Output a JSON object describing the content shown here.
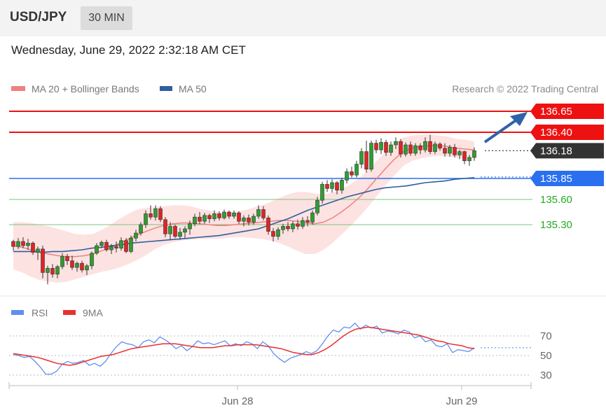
{
  "header": {
    "symbol": "USD/JPY",
    "interval_button": "30 MIN",
    "datetime": "Wednesday, June 29, 2022 2:32:18 AM CET"
  },
  "legend": {
    "ma20_label": "MA 20 + Bollinger Bands",
    "ma50_label": "MA 50",
    "credit": "Research © 2022 Trading Central"
  },
  "price_levels": {
    "target_2": "136.65",
    "target_1": "136.40",
    "last": "136.18",
    "pivot": "135.85",
    "support_1": "135.60",
    "support_2": "135.30"
  },
  "rsi_legend": {
    "rsi_label": "RSI",
    "ma_label": "9MA"
  },
  "rsi_axis": [
    "70",
    "50",
    "30"
  ],
  "x_axis": [
    "Jun 28",
    "Jun 29"
  ],
  "colors": {
    "resistance": "#ee1111",
    "pivot": "#2a6ff0",
    "support": "#22aa22",
    "last": "#333333",
    "bull_candle": "#2e9e2e",
    "bear_candle": "#e02424",
    "ma20": "#f08080",
    "ma50": "#2f5f9e",
    "bollinger_fill": "#fde2e2",
    "rsi": "#5f8ff0",
    "rsi_ma": "#e83030",
    "arrow": "#2f62a8"
  },
  "chart_data": {
    "type": "candlestick",
    "symbol": "USD/JPY",
    "interval": "30 MIN",
    "y_range": [
      134.55,
      136.75
    ],
    "levels": {
      "resistance": [
        136.65,
        136.4
      ],
      "last": 136.18,
      "pivot": 135.85,
      "support": [
        135.6,
        135.3
      ]
    },
    "candles": [
      [
        135.1,
        135.12,
        134.99,
        135.04
      ],
      [
        135.04,
        135.14,
        135.01,
        135.1
      ],
      [
        135.1,
        135.15,
        135.02,
        135.05
      ],
      [
        135.05,
        135.13,
        135.0,
        135.08
      ],
      [
        135.08,
        135.1,
        134.94,
        134.97
      ],
      [
        134.97,
        135.04,
        134.88,
        135.01
      ],
      [
        135.01,
        135.05,
        134.66,
        134.73
      ],
      [
        134.73,
        134.81,
        134.59,
        134.78
      ],
      [
        134.78,
        134.83,
        134.67,
        134.71
      ],
      [
        134.71,
        134.82,
        134.66,
        134.8
      ],
      [
        134.8,
        134.96,
        134.77,
        134.92
      ],
      [
        134.92,
        134.95,
        134.82,
        134.87
      ],
      [
        134.87,
        134.93,
        134.76,
        134.79
      ],
      [
        134.79,
        134.86,
        134.74,
        134.84
      ],
      [
        134.84,
        134.87,
        134.73,
        134.76
      ],
      [
        134.76,
        134.83,
        134.7,
        134.81
      ],
      [
        134.81,
        134.98,
        134.77,
        134.96
      ],
      [
        134.96,
        135.08,
        134.94,
        135.05
      ],
      [
        135.05,
        135.11,
        135.02,
        135.09
      ],
      [
        135.09,
        135.12,
        134.98,
        135.0
      ],
      [
        135.0,
        135.07,
        134.95,
        135.04
      ],
      [
        135.04,
        135.1,
        134.97,
        135.02
      ],
      [
        135.02,
        135.15,
        134.99,
        135.11
      ],
      [
        135.11,
        135.14,
        134.96,
        134.98
      ],
      [
        134.98,
        135.17,
        134.96,
        135.14
      ],
      [
        135.14,
        135.24,
        135.1,
        135.2
      ],
      [
        135.2,
        135.33,
        135.17,
        135.3
      ],
      [
        135.3,
        135.47,
        135.26,
        135.43
      ],
      [
        135.43,
        135.53,
        135.36,
        135.39
      ],
      [
        135.39,
        135.53,
        135.35,
        135.49
      ],
      [
        135.49,
        135.52,
        135.33,
        135.36
      ],
      [
        135.36,
        135.39,
        135.15,
        135.19
      ],
      [
        135.19,
        135.33,
        135.12,
        135.28
      ],
      [
        135.28,
        135.3,
        135.14,
        135.16
      ],
      [
        135.16,
        135.26,
        135.12,
        135.21
      ],
      [
        135.21,
        135.28,
        135.14,
        135.25
      ],
      [
        135.25,
        135.35,
        135.18,
        135.31
      ],
      [
        135.31,
        135.43,
        135.28,
        135.39
      ],
      [
        135.39,
        135.45,
        135.31,
        135.34
      ],
      [
        135.34,
        135.44,
        135.31,
        135.41
      ],
      [
        135.41,
        135.43,
        135.32,
        135.37
      ],
      [
        135.37,
        135.47,
        135.34,
        135.43
      ],
      [
        135.43,
        135.46,
        135.35,
        135.38
      ],
      [
        135.38,
        135.48,
        135.36,
        135.45
      ],
      [
        135.45,
        135.47,
        135.37,
        135.4
      ],
      [
        135.4,
        135.47,
        135.37,
        135.44
      ],
      [
        135.44,
        135.46,
        135.31,
        135.34
      ],
      [
        135.34,
        135.41,
        135.28,
        135.38
      ],
      [
        135.38,
        135.42,
        135.29,
        135.33
      ],
      [
        135.33,
        135.43,
        135.3,
        135.4
      ],
      [
        135.4,
        135.53,
        135.37,
        135.48
      ],
      [
        135.48,
        135.52,
        135.35,
        135.38
      ],
      [
        135.38,
        135.41,
        135.18,
        135.22
      ],
      [
        135.22,
        135.26,
        135.1,
        135.16
      ],
      [
        135.16,
        135.27,
        135.12,
        135.24
      ],
      [
        135.24,
        135.31,
        135.19,
        135.28
      ],
      [
        135.28,
        135.33,
        135.22,
        135.25
      ],
      [
        135.25,
        135.34,
        135.21,
        135.31
      ],
      [
        135.31,
        135.36,
        135.24,
        135.28
      ],
      [
        135.28,
        135.39,
        135.25,
        135.35
      ],
      [
        135.35,
        135.4,
        135.28,
        135.33
      ],
      [
        135.33,
        135.47,
        135.3,
        135.44
      ],
      [
        135.44,
        135.63,
        135.41,
        135.59
      ],
      [
        135.59,
        135.81,
        135.55,
        135.78
      ],
      [
        135.78,
        135.83,
        135.69,
        135.73
      ],
      [
        135.73,
        135.84,
        135.68,
        135.8
      ],
      [
        135.8,
        135.82,
        135.66,
        135.71
      ],
      [
        135.71,
        135.86,
        135.67,
        135.83
      ],
      [
        135.83,
        135.97,
        135.79,
        135.93
      ],
      [
        135.93,
        135.99,
        135.86,
        135.89
      ],
      [
        135.89,
        136.06,
        135.86,
        136.02
      ],
      [
        136.02,
        136.21,
        135.97,
        136.17
      ],
      [
        136.17,
        136.3,
        135.92,
        135.96
      ],
      [
        135.96,
        136.3,
        135.93,
        136.27
      ],
      [
        136.27,
        136.31,
        136.15,
        136.19
      ],
      [
        136.19,
        136.33,
        136.14,
        136.28
      ],
      [
        136.28,
        136.31,
        136.12,
        136.16
      ],
      [
        136.16,
        136.29,
        136.12,
        136.25
      ],
      [
        136.25,
        136.34,
        136.2,
        136.29
      ],
      [
        136.29,
        136.32,
        136.1,
        136.14
      ],
      [
        136.14,
        136.28,
        136.11,
        136.25
      ],
      [
        136.25,
        136.29,
        136.12,
        136.15
      ],
      [
        136.15,
        136.27,
        136.12,
        136.24
      ],
      [
        136.24,
        136.27,
        136.14,
        136.19
      ],
      [
        136.19,
        136.34,
        136.16,
        136.29
      ],
      [
        136.29,
        136.37,
        136.14,
        136.17
      ],
      [
        136.17,
        136.29,
        136.14,
        136.26
      ],
      [
        136.26,
        136.28,
        136.18,
        136.21
      ],
      [
        136.21,
        136.27,
        136.11,
        136.15
      ],
      [
        136.15,
        136.25,
        136.11,
        136.22
      ],
      [
        136.22,
        136.26,
        136.1,
        136.13
      ],
      [
        136.13,
        136.19,
        136.08,
        136.17
      ],
      [
        136.17,
        136.18,
        136.02,
        136.06
      ],
      [
        136.06,
        136.13,
        136.0,
        136.1
      ],
      [
        136.1,
        136.22,
        136.06,
        136.18
      ]
    ],
    "ma20": [
      135.05,
      135.03,
      135.0,
      134.97,
      134.95,
      134.93,
      134.92,
      134.92,
      134.93,
      134.95,
      134.99,
      135.03,
      135.08,
      135.13,
      135.18,
      135.22,
      135.26,
      135.29,
      135.31,
      135.32,
      135.32,
      135.31,
      135.3,
      135.29,
      135.29,
      135.3,
      135.31,
      135.32,
      135.33,
      135.34,
      135.35,
      135.35,
      135.34,
      135.32,
      135.31,
      135.33,
      135.38,
      135.45,
      135.53,
      135.62,
      135.73,
      135.85,
      135.97,
      136.08,
      136.17,
      136.21,
      136.23,
      136.24,
      136.24,
      136.23,
      136.21,
      136.2,
      136.19
    ],
    "ma50": [
      134.98,
      134.98,
      134.98,
      134.97,
      134.98,
      134.98,
      134.99,
      135.0,
      135.02,
      135.03,
      135.05,
      135.06,
      135.08,
      135.09,
      135.1,
      135.11,
      135.12,
      135.13,
      135.14,
      135.15,
      135.16,
      135.17,
      135.19,
      135.21,
      135.23,
      135.25,
      135.29,
      135.33,
      135.37,
      135.42,
      135.47,
      135.51,
      135.55,
      135.59,
      135.63,
      135.66,
      135.69,
      135.72,
      135.74,
      135.75,
      135.76,
      135.78,
      135.8,
      135.81,
      135.82,
      135.84,
      135.85,
      135.86
    ],
    "rsi": {
      "axis_ticks": [
        70,
        50,
        30
      ],
      "rsi": [
        51,
        50,
        48,
        49,
        44,
        38,
        31,
        31,
        34,
        41,
        44,
        42,
        43,
        45,
        40,
        42,
        39,
        44,
        52,
        59,
        64,
        62,
        61,
        58,
        64,
        66,
        63,
        69,
        66,
        62,
        57,
        60,
        55,
        59,
        65,
        62,
        63,
        61,
        63,
        65,
        60,
        62,
        60,
        64,
        62,
        57,
        64,
        60,
        52,
        47,
        43,
        47,
        49,
        51,
        54,
        52,
        55,
        62,
        70,
        76,
        74,
        79,
        78,
        83,
        77,
        81,
        78,
        80,
        73,
        75,
        74,
        72,
        76,
        74,
        68,
        70,
        64,
        66,
        60,
        59,
        62,
        53,
        56,
        55,
        54,
        58
      ],
      "ma9": [
        52,
        51,
        50,
        49,
        48,
        46,
        44,
        42,
        41,
        40,
        41,
        43,
        45,
        47,
        49,
        50,
        51,
        53,
        55,
        57,
        58,
        59,
        60,
        61,
        62,
        62,
        62,
        61,
        60,
        59,
        58,
        58,
        58,
        59,
        60,
        60,
        61,
        61,
        61,
        61,
        60,
        59,
        58,
        57,
        55,
        53,
        52,
        51,
        51,
        53,
        56,
        60,
        65,
        70,
        74,
        77,
        78,
        79,
        78,
        77,
        76,
        75,
        74,
        73,
        72,
        71,
        69,
        67,
        65,
        64,
        62,
        61,
        60,
        58,
        57
      ]
    },
    "x_labels": [
      "Jun 28",
      "Jun 29"
    ],
    "legend": [
      "MA 20 + Bollinger Bands",
      "MA 50",
      "RSI",
      "9MA"
    ],
    "annotations": [
      "upward arrow from 136.18 toward 136.65"
    ]
  }
}
